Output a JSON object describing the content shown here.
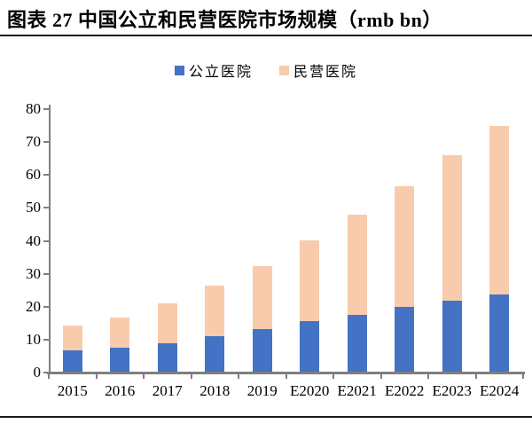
{
  "title": "图表 27  中国公立和民营医院市场规模（rmb bn）",
  "legend": [
    {
      "label": "公立医院",
      "color": "#4472C4"
    },
    {
      "label": "民营医院",
      "color": "#F8CBAD"
    }
  ],
  "chart_data": {
    "type": "bar",
    "stacked": true,
    "title": "图表 27  中国公立和民营医院市场规模（rmb bn）",
    "categories": [
      "2015",
      "2016",
      "2017",
      "2018",
      "2019",
      "E2020",
      "E2021",
      "E2022",
      "E2023",
      "E2024"
    ],
    "series": [
      {
        "name": "公立医院",
        "color": "#4472C4",
        "values": [
          6.7,
          7.5,
          8.8,
          11.0,
          13.2,
          15.5,
          17.6,
          19.8,
          21.7,
          23.7
        ]
      },
      {
        "name": "民营医院",
        "color": "#F8CBAD",
        "values": [
          7.5,
          9.3,
          12.3,
          15.4,
          19.2,
          24.6,
          30.4,
          36.8,
          44.2,
          51.3
        ]
      }
    ],
    "totals": [
      14.2,
      16.8,
      21.1,
      26.4,
      32.4,
      40.1,
      48.0,
      56.6,
      65.9,
      75.0
    ],
    "xlabel": "",
    "ylabel": "",
    "ylim": [
      0,
      80
    ],
    "yticks": [
      0,
      10,
      20,
      30,
      40,
      50,
      60,
      70,
      80
    ],
    "grid": false,
    "legend_position": "top",
    "axis_color": "#7f7f7f",
    "unit": "rmb bn"
  }
}
